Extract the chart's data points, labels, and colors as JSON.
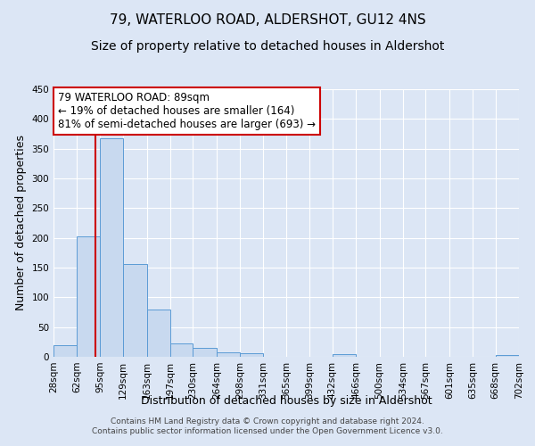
{
  "title": "79, WATERLOO ROAD, ALDERSHOT, GU12 4NS",
  "subtitle": "Size of property relative to detached houses in Aldershot",
  "xlabel": "Distribution of detached houses by size in Aldershot",
  "ylabel": "Number of detached properties",
  "footer_lines": [
    "Contains HM Land Registry data © Crown copyright and database right 2024.",
    "Contains public sector information licensed under the Open Government Licence v3.0."
  ],
  "bin_edges": [
    28,
    62,
    95,
    129,
    163,
    197,
    230,
    264,
    298,
    331,
    365,
    399,
    432,
    466,
    500,
    534,
    567,
    601,
    635,
    668,
    702
  ],
  "bin_labels": [
    "28sqm",
    "62sqm",
    "95sqm",
    "129sqm",
    "163sqm",
    "197sqm",
    "230sqm",
    "264sqm",
    "298sqm",
    "331sqm",
    "365sqm",
    "399sqm",
    "432sqm",
    "466sqm",
    "500sqm",
    "534sqm",
    "567sqm",
    "601sqm",
    "635sqm",
    "668sqm",
    "702sqm"
  ],
  "bar_heights": [
    20,
    202,
    367,
    156,
    79,
    22,
    15,
    8,
    6,
    0,
    0,
    0,
    5,
    0,
    0,
    0,
    0,
    0,
    0,
    3
  ],
  "bar_color": "#c8d9ef",
  "bar_edge_color": "#5b9bd5",
  "red_line_x": 89,
  "annotation_text": "79 WATERLOO ROAD: 89sqm\n← 19% of detached houses are smaller (164)\n81% of semi-detached houses are larger (693) →",
  "annotation_box_color": "#ffffff",
  "annotation_box_edge_color": "#cc0000",
  "red_line_color": "#cc0000",
  "ylim": [
    0,
    450
  ],
  "yticks": [
    0,
    50,
    100,
    150,
    200,
    250,
    300,
    350,
    400,
    450
  ],
  "background_color": "#dce6f5",
  "grid_color": "#ffffff",
  "title_fontsize": 11,
  "subtitle_fontsize": 10,
  "axis_label_fontsize": 9,
  "tick_fontsize": 7.5,
  "annotation_fontsize": 8.5,
  "footer_fontsize": 6.5
}
